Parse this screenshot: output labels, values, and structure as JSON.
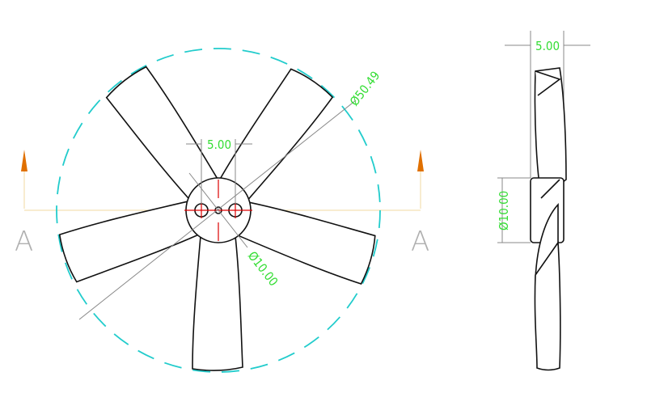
{
  "front_view": {
    "dim_hole_spacing": "5.00",
    "dim_outer_diameter": "Ø50.49",
    "dim_hub_diameter": "Ø10.00",
    "blade_count": 5
  },
  "side_view": {
    "dim_thickness": "5.00",
    "dim_hub_diameter": "Ø10.00"
  },
  "section_marker": {
    "left_label": "A",
    "right_label": "A",
    "arrow_color": "#e07000"
  },
  "colors": {
    "dimension_text": "#33dd33",
    "outline_circle": "#22cccc",
    "center_lines": "#dd0000"
  }
}
